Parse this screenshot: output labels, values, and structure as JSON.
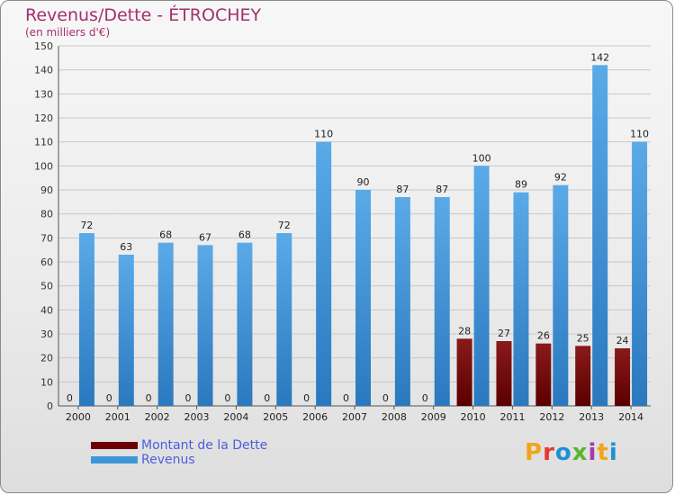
{
  "header": {
    "title": "Revenus/Dette - ÉTROCHEY",
    "subtitle": "(en milliers d'€)"
  },
  "logo": {
    "text": "Proxiti",
    "colors": [
      "#f2a51a",
      "#e43b2c",
      "#1f8fd6",
      "#5bb531",
      "#a63bb0",
      "#f2a51a",
      "#1f8fd6"
    ]
  },
  "chart_data": {
    "type": "bar",
    "title": "Revenus/Dette - ÉTROCHEY",
    "ylabel": "(en milliers d'€)",
    "xlabel": "",
    "ylim": [
      0,
      150
    ],
    "yticks": [
      0,
      10,
      20,
      30,
      40,
      50,
      60,
      70,
      80,
      90,
      100,
      110,
      120,
      130,
      140,
      150
    ],
    "grid": true,
    "legend_position": "bottom-left",
    "categories": [
      "2000",
      "2001",
      "2002",
      "2003",
      "2004",
      "2005",
      "2006",
      "2007",
      "2008",
      "2009",
      "2010",
      "2011",
      "2012",
      "2013",
      "2014"
    ],
    "series": [
      {
        "name": "Montant de la Dette",
        "color": "#6b0000",
        "values": [
          0,
          0,
          0,
          0,
          0,
          0,
          0,
          0,
          0,
          0,
          28,
          27,
          26,
          25,
          24
        ]
      },
      {
        "name": "Revenus",
        "color": "#3d96d9",
        "values": [
          72,
          63,
          68,
          67,
          68,
          72,
          110,
          90,
          87,
          87,
          100,
          89,
          92,
          142,
          110
        ]
      }
    ]
  }
}
